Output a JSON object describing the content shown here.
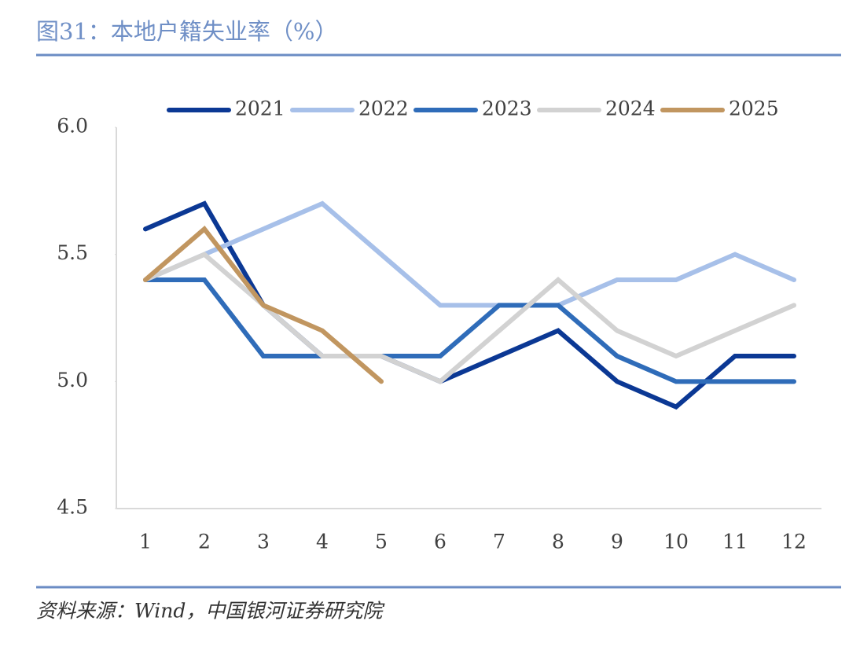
{
  "chart_data": {
    "type": "line",
    "title": "图31：本地户籍失业率（%）",
    "source": "资料来源：Wind，中国银河证券研究院",
    "categories": [
      "1",
      "2",
      "3",
      "4",
      "5",
      "6",
      "7",
      "8",
      "9",
      "10",
      "11",
      "12"
    ],
    "series": [
      {
        "name": "2021",
        "color": "#0b3894",
        "values": [
          5.6,
          5.7,
          5.3,
          5.1,
          5.1,
          5.0,
          5.1,
          5.2,
          5.0,
          4.9,
          5.1,
          5.1
        ]
      },
      {
        "name": "2022",
        "color": "#a7c0e9",
        "values": [
          5.4,
          5.5,
          5.6,
          5.7,
          5.5,
          5.3,
          5.3,
          5.3,
          5.4,
          5.4,
          5.5,
          5.4
        ]
      },
      {
        "name": "2023",
        "color": "#2f6cb9",
        "values": [
          5.4,
          5.4,
          5.1,
          5.1,
          5.1,
          5.1,
          5.3,
          5.3,
          5.1,
          5.0,
          5.0,
          5.0
        ]
      },
      {
        "name": "2024",
        "color": "#d2d2d2",
        "values": [
          5.4,
          5.5,
          5.3,
          5.1,
          5.1,
          5.0,
          5.2,
          5.4,
          5.2,
          5.1,
          5.2,
          5.3
        ]
      },
      {
        "name": "2025",
        "color": "#c19660",
        "values": [
          5.4,
          5.6,
          5.3,
          5.2,
          5.0,
          null,
          null,
          null,
          null,
          null,
          null,
          null
        ]
      }
    ],
    "ylim": [
      4.5,
      6.0
    ],
    "yticks": [
      4.5,
      {
        "value": 5.0,
        "label": "5.0"
      },
      5.5,
      {
        "value": 6.0,
        "label": "6.0"
      }
    ],
    "grid": false,
    "legend": "top"
  }
}
